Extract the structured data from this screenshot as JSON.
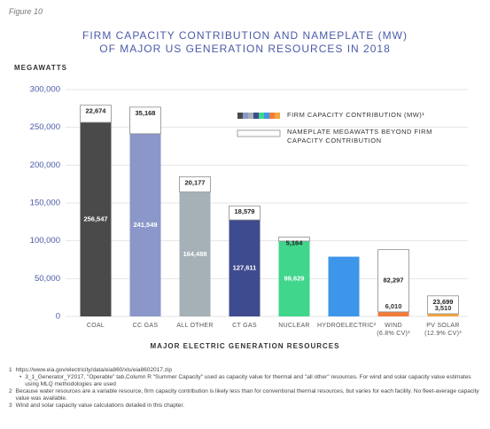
{
  "figure_label": "Figure 10",
  "chart_data": {
    "type": "stacked_bar",
    "title": "FIRM CAPACITY CONTRIBUTION AND NAMEPLATE (MW)\nOF MAJOR US GENERATION RESOURCES IN 2018",
    "y_label": "MEGAWATTS",
    "x_label": "MAJOR ELECTRIC GENERATION RESOURCES",
    "categories": [
      "COAL",
      "CC GAS",
      "ALL OTHER",
      "CT GAS",
      "NUCLEAR",
      "HYDROELECTRIC²",
      "WIND\n(6.8% CV)³",
      "PV SOLAR\n(12.9% CV)³"
    ],
    "series": [
      {
        "name": "FIRM CAPACITY CONTRIBUTION (MW)¹",
        "colors": [
          "#4a4a4a",
          "#8b97c9",
          "#a5b1b6",
          "#3f4b8f",
          "#40d68b",
          "#3d96ea",
          "#f27b3a",
          "#f4a63f"
        ],
        "values": [
          256547,
          241549,
          164488,
          127611,
          99629,
          79000,
          6010,
          3510
        ],
        "value_labels": [
          "256,547",
          "241,549",
          "164,488",
          "127,611",
          "99,629",
          null,
          "6,010",
          "3,510"
        ]
      },
      {
        "name": "NAMEPLATE MEGAWATTS BEYOND FIRM CAPACITY CONTRIBUTION",
        "color": "#ffffff",
        "stroke": "#8c8c8c",
        "values": [
          22674,
          35168,
          20177,
          18579,
          5164,
          null,
          82297,
          23699
        ],
        "value_labels": [
          "22,674",
          "35,168",
          "20,177",
          "18,579",
          "5,164",
          null,
          "82,297",
          "23,699"
        ]
      }
    ],
    "ylim": [
      0,
      300000
    ],
    "yticks": [
      0,
      {
        "value": 50000,
        "label": "50,000"
      },
      {
        "value": 100000,
        "label": "100,000"
      },
      {
        "value": 150000,
        "label": "150,000"
      },
      {
        "value": 200000,
        "label": "200,000"
      },
      {
        "value": 250000,
        "label": "250,000"
      },
      {
        "value": 300000,
        "label": "300,000"
      }
    ],
    "grid": true
  },
  "footnotes": [
    {
      "number": "1",
      "text": "https://www.eia.gov/electricity/data/eia860/xls/eia8602017.zip",
      "detail": "3_1_Generator_Y2017, \"Operable\" tab,Column R \"Summer Capacity\" used as capacity value for thermal and \"all other\" resources. For wind and solar capacity value estimates using MLQ methodologies are used"
    },
    {
      "number": "2",
      "text": "Because water resources are a variable resource, firm capacity contribution is likely less than for conventional thermal resources, but varies for each facility. No fleet-average capacity value was available."
    },
    {
      "number": "3",
      "text": "Wind and solar capacity value calculations detailed in this chapter."
    }
  ]
}
